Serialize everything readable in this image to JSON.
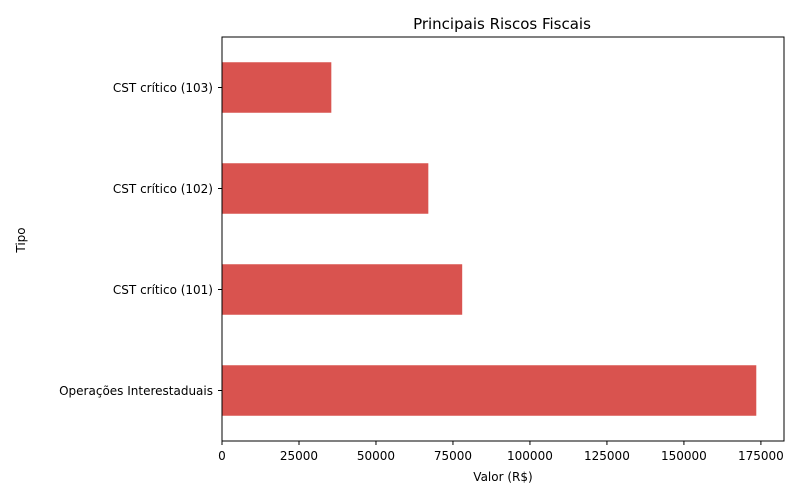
{
  "chart_data": {
    "type": "bar",
    "orientation": "horizontal",
    "title": "Principais Riscos Fiscais",
    "xlabel": "Valor (R$)",
    "ylabel": "Tipo",
    "categories": [
      "Operações Interestaduais",
      "CST crítico (101)",
      "CST crítico (102)",
      "CST crítico (103)"
    ],
    "values": [
      173500,
      78000,
      67000,
      35500
    ],
    "xlim": [
      0,
      182500
    ],
    "xticks": [
      0,
      25000,
      50000,
      75000,
      100000,
      125000,
      150000,
      175000
    ],
    "xtick_labels": [
      "0",
      "25000",
      "50000",
      "75000",
      "100000",
      "125000",
      "150000",
      "175000"
    ],
    "bar_color": "#d9534f",
    "grid": false,
    "legend": "none"
  }
}
